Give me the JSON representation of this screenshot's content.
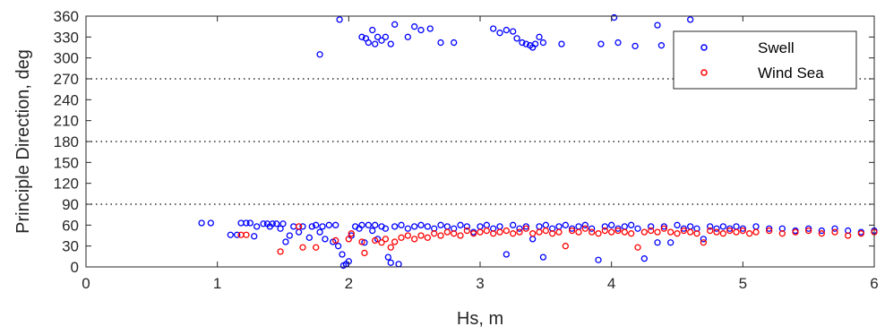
{
  "chart_data": {
    "type": "scatter",
    "xlabel": "Hs, m",
    "ylabel": "Principle Direction, deg",
    "xlim": [
      0,
      6
    ],
    "ylim": [
      0,
      360
    ],
    "xticks": [
      0,
      1,
      2,
      3,
      4,
      5,
      6
    ],
    "yticks": [
      0,
      30,
      60,
      90,
      120,
      150,
      180,
      210,
      240,
      270,
      300,
      330,
      360
    ],
    "reference_lines": [
      90,
      180,
      270
    ],
    "legend_position": "top-right",
    "series": [
      {
        "name": "Swell",
        "color": "#0000ff",
        "points": [
          [
            0.88,
            63
          ],
          [
            0.95,
            63
          ],
          [
            1.1,
            46
          ],
          [
            1.15,
            46
          ],
          [
            1.18,
            63
          ],
          [
            1.22,
            63
          ],
          [
            1.25,
            63
          ],
          [
            1.28,
            44
          ],
          [
            1.3,
            58
          ],
          [
            1.35,
            62
          ],
          [
            1.38,
            62
          ],
          [
            1.4,
            58
          ],
          [
            1.42,
            62
          ],
          [
            1.45,
            62
          ],
          [
            1.48,
            55
          ],
          [
            1.5,
            62
          ],
          [
            1.52,
            36
          ],
          [
            1.55,
            45
          ],
          [
            1.58,
            58
          ],
          [
            1.62,
            50
          ],
          [
            1.65,
            58
          ],
          [
            1.7,
            42
          ],
          [
            1.72,
            58
          ],
          [
            1.75,
            60
          ],
          [
            1.78,
            50
          ],
          [
            1.8,
            58
          ],
          [
            1.82,
            40
          ],
          [
            1.85,
            60
          ],
          [
            1.88,
            36
          ],
          [
            1.9,
            60
          ],
          [
            1.92,
            30
          ],
          [
            1.95,
            18
          ],
          [
            1.96,
            2
          ],
          [
            1.98,
            4
          ],
          [
            2.0,
            8
          ],
          [
            2.02,
            45
          ],
          [
            2.05,
            58
          ],
          [
            2.08,
            55
          ],
          [
            2.1,
            60
          ],
          [
            2.12,
            35
          ],
          [
            2.15,
            60
          ],
          [
            2.18,
            52
          ],
          [
            2.2,
            60
          ],
          [
            2.22,
            40
          ],
          [
            2.25,
            58
          ],
          [
            2.28,
            55
          ],
          [
            2.3,
            14
          ],
          [
            2.32,
            6
          ],
          [
            2.35,
            58
          ],
          [
            2.38,
            4
          ],
          [
            2.4,
            60
          ],
          [
            2.45,
            55
          ],
          [
            2.5,
            58
          ],
          [
            2.55,
            60
          ],
          [
            2.6,
            58
          ],
          [
            2.65,
            55
          ],
          [
            2.7,
            60
          ],
          [
            2.75,
            58
          ],
          [
            2.8,
            55
          ],
          [
            2.85,
            60
          ],
          [
            2.9,
            58
          ],
          [
            2.95,
            50
          ],
          [
            3.0,
            58
          ],
          [
            3.05,
            60
          ],
          [
            3.1,
            55
          ],
          [
            3.15,
            58
          ],
          [
            3.2,
            18
          ],
          [
            3.25,
            60
          ],
          [
            3.3,
            55
          ],
          [
            3.35,
            58
          ],
          [
            3.4,
            40
          ],
          [
            3.45,
            58
          ],
          [
            3.48,
            14
          ],
          [
            3.5,
            60
          ],
          [
            3.55,
            55
          ],
          [
            3.6,
            58
          ],
          [
            3.65,
            60
          ],
          [
            3.7,
            55
          ],
          [
            3.75,
            58
          ],
          [
            3.8,
            60
          ],
          [
            3.85,
            55
          ],
          [
            3.9,
            10
          ],
          [
            3.95,
            58
          ],
          [
            4.0,
            60
          ],
          [
            4.05,
            55
          ],
          [
            4.1,
            58
          ],
          [
            4.15,
            60
          ],
          [
            4.2,
            55
          ],
          [
            4.25,
            12
          ],
          [
            4.3,
            58
          ],
          [
            4.35,
            35
          ],
          [
            4.4,
            58
          ],
          [
            4.45,
            35
          ],
          [
            4.5,
            60
          ],
          [
            4.55,
            55
          ],
          [
            4.6,
            58
          ],
          [
            4.65,
            55
          ],
          [
            4.7,
            40
          ],
          [
            4.75,
            58
          ],
          [
            4.8,
            55
          ],
          [
            4.85,
            58
          ],
          [
            4.9,
            55
          ],
          [
            4.95,
            58
          ],
          [
            5.0,
            55
          ],
          [
            5.1,
            58
          ],
          [
            5.2,
            55
          ],
          [
            5.3,
            55
          ],
          [
            5.4,
            52
          ],
          [
            5.5,
            55
          ],
          [
            5.6,
            52
          ],
          [
            5.7,
            55
          ],
          [
            5.8,
            52
          ],
          [
            5.9,
            50
          ],
          [
            6.0,
            52
          ],
          [
            1.78,
            305
          ],
          [
            1.93,
            355
          ],
          [
            2.1,
            330
          ],
          [
            2.13,
            328
          ],
          [
            2.15,
            322
          ],
          [
            2.18,
            340
          ],
          [
            2.2,
            320
          ],
          [
            2.22,
            330
          ],
          [
            2.25,
            325
          ],
          [
            2.28,
            330
          ],
          [
            2.32,
            320
          ],
          [
            2.35,
            348
          ],
          [
            2.45,
            330
          ],
          [
            2.5,
            345
          ],
          [
            2.55,
            340
          ],
          [
            2.62,
            342
          ],
          [
            2.7,
            322
          ],
          [
            2.8,
            322
          ],
          [
            3.1,
            342
          ],
          [
            3.15,
            336
          ],
          [
            3.2,
            340
          ],
          [
            3.25,
            338
          ],
          [
            3.28,
            328
          ],
          [
            3.32,
            322
          ],
          [
            3.35,
            320
          ],
          [
            3.38,
            318
          ],
          [
            3.4,
            315
          ],
          [
            3.42,
            320
          ],
          [
            3.45,
            330
          ],
          [
            3.48,
            322
          ],
          [
            3.62,
            320
          ],
          [
            3.92,
            320
          ],
          [
            4.02,
            358
          ],
          [
            4.05,
            322
          ],
          [
            4.18,
            317
          ],
          [
            4.35,
            347
          ],
          [
            4.38,
            318
          ],
          [
            4.6,
            355
          ]
        ]
      },
      {
        "name": "Wind Sea",
        "color": "#ff0000",
        "points": [
          [
            1.18,
            46
          ],
          [
            1.22,
            46
          ],
          [
            1.48,
            22
          ],
          [
            1.62,
            58
          ],
          [
            1.65,
            28
          ],
          [
            1.75,
            28
          ],
          [
            1.9,
            38
          ],
          [
            2.0,
            40
          ],
          [
            2.02,
            48
          ],
          [
            2.1,
            36
          ],
          [
            2.12,
            20
          ],
          [
            2.2,
            38
          ],
          [
            2.25,
            35
          ],
          [
            2.28,
            40
          ],
          [
            2.32,
            28
          ],
          [
            2.35,
            36
          ],
          [
            2.4,
            42
          ],
          [
            2.45,
            45
          ],
          [
            2.5,
            40
          ],
          [
            2.55,
            45
          ],
          [
            2.6,
            42
          ],
          [
            2.65,
            48
          ],
          [
            2.7,
            45
          ],
          [
            2.75,
            50
          ],
          [
            2.8,
            48
          ],
          [
            2.85,
            45
          ],
          [
            2.9,
            52
          ],
          [
            2.95,
            48
          ],
          [
            3.0,
            50
          ],
          [
            3.05,
            52
          ],
          [
            3.1,
            48
          ],
          [
            3.15,
            50
          ],
          [
            3.2,
            52
          ],
          [
            3.25,
            48
          ],
          [
            3.3,
            50
          ],
          [
            3.35,
            55
          ],
          [
            3.4,
            48
          ],
          [
            3.45,
            50
          ],
          [
            3.5,
            52
          ],
          [
            3.55,
            48
          ],
          [
            3.6,
            50
          ],
          [
            3.65,
            30
          ],
          [
            3.7,
            52
          ],
          [
            3.75,
            50
          ],
          [
            3.8,
            55
          ],
          [
            3.85,
            50
          ],
          [
            3.9,
            48
          ],
          [
            3.95,
            52
          ],
          [
            4.0,
            50
          ],
          [
            4.05,
            52
          ],
          [
            4.1,
            50
          ],
          [
            4.15,
            48
          ],
          [
            4.2,
            28
          ],
          [
            4.25,
            50
          ],
          [
            4.3,
            52
          ],
          [
            4.35,
            50
          ],
          [
            4.4,
            55
          ],
          [
            4.45,
            50
          ],
          [
            4.5,
            48
          ],
          [
            4.55,
            52
          ],
          [
            4.6,
            50
          ],
          [
            4.65,
            48
          ],
          [
            4.7,
            35
          ],
          [
            4.75,
            52
          ],
          [
            4.8,
            50
          ],
          [
            4.85,
            48
          ],
          [
            4.9,
            52
          ],
          [
            4.95,
            50
          ],
          [
            5.0,
            52
          ],
          [
            5.05,
            48
          ],
          [
            5.1,
            50
          ],
          [
            5.2,
            52
          ],
          [
            5.3,
            48
          ],
          [
            5.4,
            50
          ],
          [
            5.5,
            52
          ],
          [
            5.6,
            48
          ],
          [
            5.7,
            50
          ],
          [
            5.8,
            45
          ],
          [
            5.9,
            48
          ],
          [
            6.0,
            50
          ]
        ]
      }
    ]
  }
}
